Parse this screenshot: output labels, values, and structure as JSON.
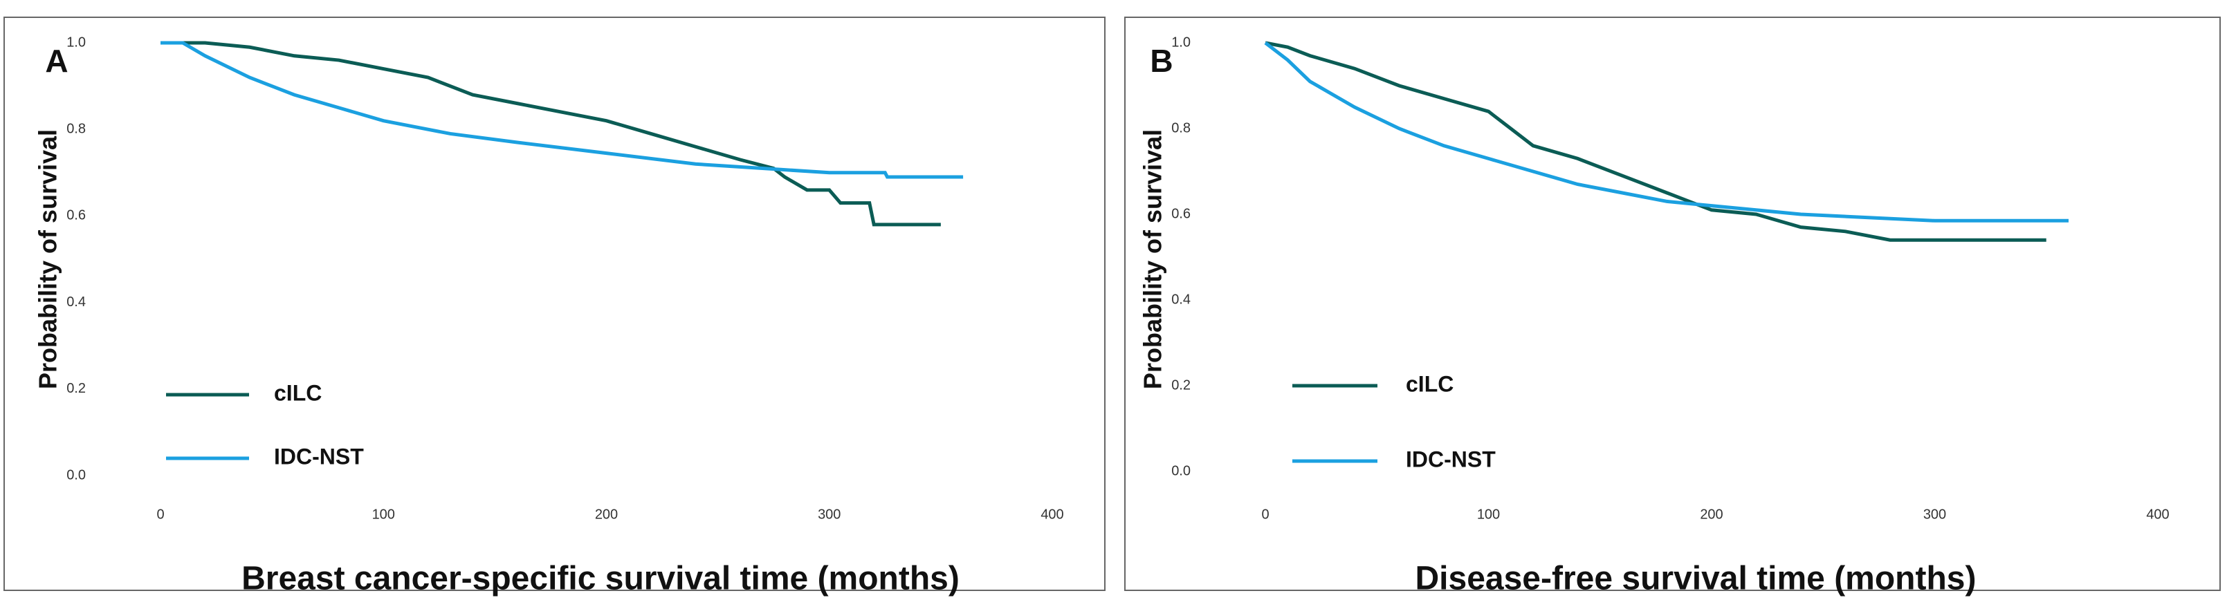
{
  "chart_data": [
    {
      "type": "line",
      "panel_label": "A",
      "xlabel": "Breast cancer-specific survival time (months)",
      "ylabel": "Probability of survival",
      "xlim": [
        0,
        400
      ],
      "xticks": [
        0,
        100,
        200,
        300,
        400
      ],
      "ylim": [
        0,
        1
      ],
      "yticks": [
        {
          "value": 0,
          "label": "0.0"
        },
        0.2,
        0.4,
        0.6,
        0.8,
        {
          "value": 1,
          "label": "1.0"
        }
      ],
      "series": [
        {
          "name": "cILC",
          "color": "#0b5c55",
          "x": [
            0,
            20,
            40,
            60,
            80,
            100,
            120,
            140,
            160,
            180,
            200,
            220,
            240,
            260,
            275,
            280,
            290,
            300,
            305,
            318,
            320,
            350
          ],
          "values": [
            1,
            1,
            0.99,
            0.97,
            0.96,
            0.94,
            0.92,
            0.88,
            0.86,
            0.84,
            0.82,
            0.79,
            0.76,
            0.73,
            0.71,
            0.69,
            0.66,
            0.66,
            0.63,
            0.63,
            0.58,
            0.58
          ]
        },
        {
          "name": "IDC-NST",
          "color": "#1ba0e0",
          "x": [
            0,
            10,
            20,
            40,
            60,
            80,
            100,
            130,
            160,
            200,
            240,
            270,
            300,
            325,
            326,
            360
          ],
          "values": [
            1,
            1,
            0.97,
            0.92,
            0.88,
            0.85,
            0.82,
            0.79,
            0.77,
            0.745,
            0.72,
            0.71,
            0.7,
            0.7,
            0.69,
            0.69
          ]
        }
      ]
    },
    {
      "type": "line",
      "panel_label": "B",
      "xlabel": "Disease-free survival time (months)",
      "ylabel": "Probability of survival",
      "xlim": [
        0,
        400
      ],
      "xticks": [
        0,
        100,
        200,
        300,
        400
      ],
      "ylim": [
        0,
        1
      ],
      "yticks": [
        {
          "value": 0,
          "label": "0.0"
        },
        0.2,
        0.4,
        0.6,
        0.8,
        {
          "value": 1,
          "label": "1.0"
        }
      ],
      "series": [
        {
          "name": "cILC",
          "color": "#0b5c55",
          "x": [
            0,
            10,
            20,
            40,
            60,
            80,
            100,
            110,
            120,
            140,
            160,
            170,
            180,
            190,
            200,
            220,
            240,
            260,
            280,
            350
          ],
          "values": [
            1,
            0.99,
            0.97,
            0.94,
            0.9,
            0.87,
            0.84,
            0.8,
            0.76,
            0.73,
            0.69,
            0.67,
            0.65,
            0.63,
            0.61,
            0.6,
            0.57,
            0.56,
            0.54,
            0.54
          ]
        },
        {
          "name": "IDC-NST",
          "color": "#1ba0e0",
          "x": [
            0,
            10,
            20,
            40,
            60,
            80,
            100,
            120,
            140,
            160,
            180,
            200,
            240,
            280,
            300,
            360
          ],
          "values": [
            1,
            0.96,
            0.91,
            0.85,
            0.8,
            0.76,
            0.73,
            0.7,
            0.67,
            0.65,
            0.63,
            0.62,
            0.6,
            0.59,
            0.585,
            0.585
          ]
        }
      ]
    }
  ]
}
